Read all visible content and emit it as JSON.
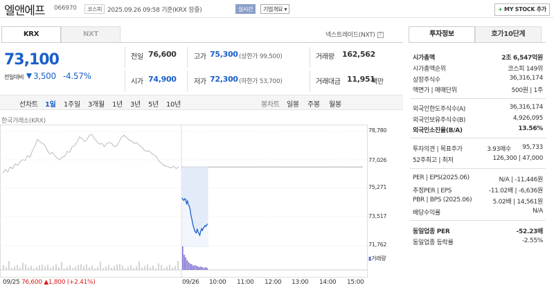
{
  "header": {
    "stock_name": "엘앤에프",
    "stock_code": "066970",
    "market_badge": "코스피",
    "datetime_text": "2025.09.26 09:58 기준(KRX 장중)",
    "realtime_badge": "실시간",
    "company_info_button": "기업개요 ▾",
    "mystock_plus": "+",
    "mystock_label": "MY STOCK 추가"
  },
  "tabs": {
    "krx": "KRX",
    "nxt": "NXT",
    "nextrade_link": "넥스트레이드(NXT)"
  },
  "quote": {
    "current_price": "73,100",
    "change_label": "전일대비",
    "change_value": "3,500",
    "change_pct": "-4.57%",
    "prev_close_label": "전일",
    "prev_close": "76,600",
    "open_label": "시가",
    "open": "74,900",
    "high_label": "고가",
    "high": "75,300",
    "upper_limit": "(상한가 99,500)",
    "low_label": "저가",
    "low": "72,300",
    "lower_limit": "(하한가 53,700)",
    "volume_label": "거래량",
    "volume": "162,562",
    "amount_label": "거래대금",
    "amount": "11,951",
    "amount_unit": "백만"
  },
  "periods": {
    "line_label": "선차트",
    "items": [
      "1일",
      "1주일",
      "3개월",
      "1년",
      "3년",
      "5년",
      "10년"
    ],
    "candle_label": "봉차트",
    "candle_items": [
      "일봉",
      "주봉",
      "월봉"
    ]
  },
  "chart_data": {
    "type": "line",
    "exchange_label": "한국거래소(KRX)",
    "y_ticks": [
      "78,780",
      "77,026",
      "75,271",
      "73,517",
      "71,762"
    ],
    "ylim": [
      71762,
      78780
    ],
    "x_ticks": [
      "09/26",
      "10:00",
      "11:00",
      "12:00",
      "13:00",
      "14:00",
      "15:00"
    ],
    "volume_legend": "거래량",
    "prev_day": {
      "date": "09/25",
      "close": "76,600",
      "change": "▲1,800",
      "pct": "(+2.41%)"
    },
    "prev_close_line": 76600,
    "series": [
      {
        "values": [
          76200,
          76450,
          76300,
          76600,
          76500,
          76800,
          76700,
          76900,
          77050,
          77000,
          77300,
          77200,
          77600,
          77900,
          78300,
          78150,
          78050,
          77950,
          77600,
          77400,
          77500,
          77300,
          77150,
          77050,
          77200,
          77250,
          77550,
          77500,
          77850,
          77900,
          78150,
          78450,
          78350,
          78150,
          78300,
          78550,
          78600,
          78350,
          78150,
          78000,
          78050,
          77850,
          78050,
          78100,
          78050,
          77850,
          77900,
          78150,
          78450,
          78550,
          78400,
          78250,
          78200,
          78050,
          78100,
          77950,
          77850,
          77650,
          77550,
          77600,
          77450,
          77350,
          77250,
          76950,
          76850,
          76700,
          76650,
          76600,
          76550,
          76650,
          76500,
          76600
        ]
      },
      {
        "values": [
          74700,
          74600,
          74550,
          74650,
          74600,
          74350,
          74500,
          74300,
          74200,
          74000,
          73600,
          73400,
          73100,
          72900,
          72700,
          72600,
          72550,
          72800,
          72600,
          72500,
          72400,
          72650,
          72800,
          72700,
          72850,
          72900,
          73000,
          72950,
          73050,
          73100
        ]
      }
    ]
  },
  "right_panel": {
    "tab_invest": "투자정보",
    "tab_order": "호가10단계",
    "rows": [
      {
        "label": "시가총액",
        "value": "2조 6,547억원"
      },
      {
        "label": "시가총액순위",
        "value": "코스피 149위"
      },
      {
        "label": "상장주식수",
        "value": "36,316,174"
      },
      {
        "label": "액면가 | 매매단위",
        "value": "500원 | 1주"
      },
      {
        "label": "외국인한도주식수(A)",
        "value": "36,316,174"
      },
      {
        "label": "외국인보유주식수(B)",
        "value": "4,926,095"
      },
      {
        "label": "외국인소진율(B/A)",
        "value": "13.56%"
      },
      {
        "label": "투자의견 | 목표주가",
        "opinion": "3.93매수",
        "target": "95,733"
      },
      {
        "label": "52주최고 | 최저",
        "value": "126,300 | 47,000"
      },
      {
        "label": "PER | EPS(2025.06)",
        "value": "N/A | -11,446원"
      },
      {
        "label": "추정PER | EPS",
        "value": "-11.02배 | -6,636원"
      },
      {
        "label": "PBR | BPS (2025.06)",
        "value": "5.02배 | 14,561원"
      },
      {
        "label": "배당수익률",
        "value": "N/A"
      },
      {
        "label": "동일업종 PER",
        "value": "-52.23배"
      },
      {
        "label": "동일업종 등락률",
        "value": "-2.55%"
      }
    ]
  },
  "colors": {
    "up": "#d61c1c",
    "down": "#1a5fc9",
    "accent": "#8a9fc9"
  }
}
